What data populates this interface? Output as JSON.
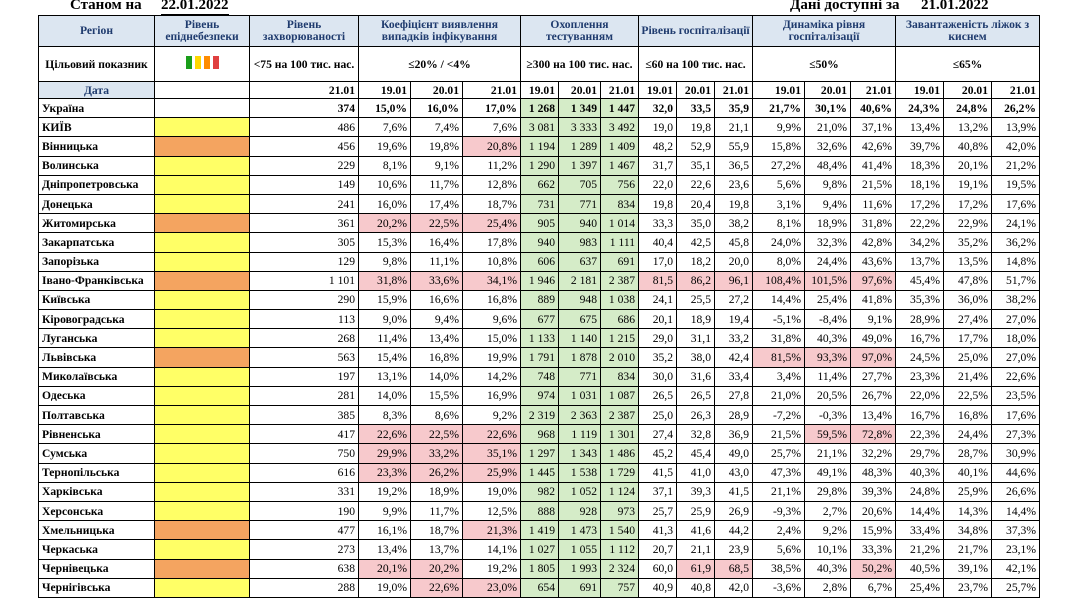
{
  "top": {
    "as_of_label": "Станом на",
    "as_of_date": "22.01.2022",
    "data_label": "Дані доступні за",
    "data_date": "21.01.2022"
  },
  "headers": {
    "region": "Регіон",
    "danger": "Рівень епіднебезпеки",
    "incidence": "Рівень захворюваності",
    "detection": "Коефіцієнт виявлення випадків інфікування",
    "testing": "Охоплення тестуванням",
    "hosp": "Рівень госпіталізації",
    "dyn": "Динаміка рівня госпіталізації",
    "oxygen": "Завантаженість ліжок з киснем"
  },
  "targets": {
    "label": "Цільовий показник",
    "incidence": "<75 на 100 тис. нас.",
    "detection": "≤20% / <4%",
    "testing": "≥300 на 100 тис. нас.",
    "hosp": "≤60 на 100 тис. нас.",
    "dyn": "≤50%",
    "oxygen": "≤65%"
  },
  "danger_colors": [
    "#1a9e1a",
    "#ffd700",
    "#ff8c00",
    "#e04040"
  ],
  "date_row": {
    "label": "Дата",
    "incidence": "21.01",
    "d1": "19.01",
    "d2": "20.01",
    "d3": "21.01"
  },
  "rows": [
    {
      "name": "Україна",
      "danger": "none",
      "inc": "374",
      "det": [
        "15,0%",
        "16,0%",
        "17,0%"
      ],
      "test": [
        "1 268",
        "1 349",
        "1 447"
      ],
      "hosp": [
        "32,0",
        "33,5",
        "35,9"
      ],
      "dyn": [
        "21,7%",
        "30,1%",
        "40,6%"
      ],
      "oxy": [
        "24,3%",
        "24,8%",
        "26,2%"
      ]
    },
    {
      "name": "КИЇВ",
      "danger": "yellow",
      "inc": "486",
      "det": [
        "7,6%",
        "7,4%",
        "7,6%"
      ],
      "test": [
        "3 081",
        "3 333",
        "3 492"
      ],
      "hosp": [
        "19,0",
        "19,8",
        "21,1"
      ],
      "dyn": [
        "9,9%",
        "21,0%",
        "37,1%"
      ],
      "oxy": [
        "13,4%",
        "13,2%",
        "13,9%"
      ]
    },
    {
      "name": "Вінницька",
      "danger": "orange",
      "inc": "456",
      "det": [
        "19,6%",
        "19,8%",
        "20,8%"
      ],
      "test": [
        "1 194",
        "1 289",
        "1 409"
      ],
      "hosp": [
        "48,2",
        "52,9",
        "55,9"
      ],
      "dyn": [
        "15,8%",
        "32,6%",
        "42,6%"
      ],
      "oxy": [
        "39,7%",
        "40,8%",
        "42,0%"
      ]
    },
    {
      "name": "Волинська",
      "danger": "yellow",
      "inc": "229",
      "det": [
        "8,1%",
        "9,1%",
        "11,2%"
      ],
      "test": [
        "1 290",
        "1 397",
        "1 467"
      ],
      "hosp": [
        "31,7",
        "35,1",
        "36,5"
      ],
      "dyn": [
        "27,2%",
        "48,4%",
        "41,4%"
      ],
      "oxy": [
        "18,3%",
        "20,1%",
        "21,2%"
      ]
    },
    {
      "name": "Дніпропетровська",
      "danger": "yellow",
      "inc": "149",
      "det": [
        "10,6%",
        "11,7%",
        "12,8%"
      ],
      "test": [
        "662",
        "705",
        "756"
      ],
      "hosp": [
        "22,0",
        "22,6",
        "23,6"
      ],
      "dyn": [
        "5,6%",
        "9,8%",
        "21,5%"
      ],
      "oxy": [
        "18,1%",
        "19,1%",
        "19,5%"
      ]
    },
    {
      "name": "Донецька",
      "danger": "yellow",
      "inc": "241",
      "det": [
        "16,0%",
        "17,4%",
        "18,7%"
      ],
      "test": [
        "731",
        "771",
        "834"
      ],
      "hosp": [
        "19,8",
        "20,4",
        "19,8"
      ],
      "dyn": [
        "3,1%",
        "9,4%",
        "11,6%"
      ],
      "oxy": [
        "17,2%",
        "17,2%",
        "17,6%"
      ]
    },
    {
      "name": "Житомирська",
      "danger": "orange",
      "inc": "361",
      "det": [
        "20,2%",
        "22,5%",
        "25,4%"
      ],
      "test": [
        "905",
        "940",
        "1 014"
      ],
      "hosp": [
        "33,3",
        "35,0",
        "38,2"
      ],
      "dyn": [
        "8,1%",
        "18,9%",
        "31,8%"
      ],
      "oxy": [
        "22,2%",
        "22,9%",
        "24,1%"
      ]
    },
    {
      "name": "Закарпатська",
      "danger": "yellow",
      "inc": "305",
      "det": [
        "15,3%",
        "16,4%",
        "17,8%"
      ],
      "test": [
        "940",
        "983",
        "1 111"
      ],
      "hosp": [
        "40,4",
        "42,5",
        "45,8"
      ],
      "dyn": [
        "24,0%",
        "32,3%",
        "42,8%"
      ],
      "oxy": [
        "34,2%",
        "35,2%",
        "36,2%"
      ]
    },
    {
      "name": "Запорізька",
      "danger": "yellow",
      "inc": "129",
      "det": [
        "9,8%",
        "11,1%",
        "10,8%"
      ],
      "test": [
        "606",
        "637",
        "691"
      ],
      "hosp": [
        "17,0",
        "18,2",
        "20,0"
      ],
      "dyn": [
        "8,0%",
        "24,4%",
        "43,6%"
      ],
      "oxy": [
        "13,7%",
        "13,5%",
        "14,8%"
      ]
    },
    {
      "name": "Івано-Франківська",
      "danger": "orange",
      "inc": "1 101",
      "det": [
        "31,8%",
        "33,6%",
        "34,1%"
      ],
      "test": [
        "1 946",
        "2 181",
        "2 387"
      ],
      "hosp": [
        "81,5",
        "86,2",
        "96,1"
      ],
      "dyn": [
        "108,4%",
        "101,5%",
        "97,6%"
      ],
      "oxy": [
        "45,4%",
        "47,8%",
        "51,7%"
      ]
    },
    {
      "name": "Київська",
      "danger": "yellow",
      "inc": "290",
      "det": [
        "15,9%",
        "16,6%",
        "16,8%"
      ],
      "test": [
        "889",
        "948",
        "1 038"
      ],
      "hosp": [
        "24,1",
        "25,5",
        "27,2"
      ],
      "dyn": [
        "14,4%",
        "25,4%",
        "41,8%"
      ],
      "oxy": [
        "35,3%",
        "36,0%",
        "38,2%"
      ]
    },
    {
      "name": "Кіровоградська",
      "danger": "yellow",
      "inc": "113",
      "det": [
        "9,0%",
        "9,4%",
        "9,6%"
      ],
      "test": [
        "677",
        "675",
        "686"
      ],
      "hosp": [
        "20,1",
        "18,9",
        "19,4"
      ],
      "dyn": [
        "-5,1%",
        "-8,4%",
        "9,1%"
      ],
      "oxy": [
        "28,9%",
        "27,4%",
        "27,0%"
      ]
    },
    {
      "name": "Луганська",
      "danger": "yellow",
      "inc": "268",
      "det": [
        "11,4%",
        "13,4%",
        "15,0%"
      ],
      "test": [
        "1 133",
        "1 140",
        "1 215"
      ],
      "hosp": [
        "29,0",
        "31,1",
        "33,2"
      ],
      "dyn": [
        "31,8%",
        "40,3%",
        "49,0%"
      ],
      "oxy": [
        "16,7%",
        "17,7%",
        "18,0%"
      ]
    },
    {
      "name": "Львівська",
      "danger": "orange",
      "inc": "563",
      "det": [
        "15,4%",
        "16,8%",
        "19,9%"
      ],
      "test": [
        "1 791",
        "1 878",
        "2 010"
      ],
      "hosp": [
        "35,2",
        "38,0",
        "42,4"
      ],
      "dyn": [
        "81,5%",
        "93,3%",
        "97,0%"
      ],
      "oxy": [
        "24,5%",
        "25,0%",
        "27,0%"
      ]
    },
    {
      "name": "Миколаївська",
      "danger": "yellow",
      "inc": "197",
      "det": [
        "13,1%",
        "14,0%",
        "14,2%"
      ],
      "test": [
        "748",
        "771",
        "834"
      ],
      "hosp": [
        "30,0",
        "31,6",
        "33,4"
      ],
      "dyn": [
        "3,4%",
        "11,4%",
        "27,7%"
      ],
      "oxy": [
        "23,3%",
        "21,4%",
        "22,6%"
      ]
    },
    {
      "name": "Одеська",
      "danger": "yellow",
      "inc": "281",
      "det": [
        "14,0%",
        "15,5%",
        "16,9%"
      ],
      "test": [
        "974",
        "1 031",
        "1 087"
      ],
      "hosp": [
        "26,5",
        "26,5",
        "27,8"
      ],
      "dyn": [
        "21,0%",
        "20,5%",
        "26,7%"
      ],
      "oxy": [
        "22,0%",
        "22,5%",
        "23,5%"
      ]
    },
    {
      "name": "Полтавська",
      "danger": "yellow",
      "inc": "385",
      "det": [
        "8,3%",
        "8,6%",
        "9,2%"
      ],
      "test": [
        "2 319",
        "2 363",
        "2 387"
      ],
      "hosp": [
        "25,0",
        "26,3",
        "28,9"
      ],
      "dyn": [
        "-7,2%",
        "-0,3%",
        "13,4%"
      ],
      "oxy": [
        "16,7%",
        "16,8%",
        "17,6%"
      ]
    },
    {
      "name": "Рівненська",
      "danger": "yellow",
      "inc": "417",
      "det": [
        "22,6%",
        "22,5%",
        "22,6%"
      ],
      "test": [
        "968",
        "1 119",
        "1 301"
      ],
      "hosp": [
        "27,4",
        "32,8",
        "36,9"
      ],
      "dyn": [
        "21,5%",
        "59,5%",
        "72,8%"
      ],
      "oxy": [
        "22,3%",
        "24,4%",
        "27,3%"
      ]
    },
    {
      "name": "Сумська",
      "danger": "yellow",
      "inc": "750",
      "det": [
        "29,9%",
        "33,2%",
        "35,1%"
      ],
      "test": [
        "1 297",
        "1 343",
        "1 486"
      ],
      "hosp": [
        "45,2",
        "45,4",
        "49,0"
      ],
      "dyn": [
        "25,7%",
        "21,1%",
        "32,2%"
      ],
      "oxy": [
        "29,7%",
        "28,7%",
        "30,9%"
      ]
    },
    {
      "name": "Тернопільська",
      "danger": "yellow",
      "inc": "616",
      "det": [
        "23,3%",
        "26,2%",
        "25,9%"
      ],
      "test": [
        "1 445",
        "1 538",
        "1 729"
      ],
      "hosp": [
        "41,5",
        "41,0",
        "43,0"
      ],
      "dyn": [
        "47,3%",
        "49,1%",
        "48,3%"
      ],
      "oxy": [
        "40,3%",
        "40,1%",
        "44,6%"
      ]
    },
    {
      "name": "Харківська",
      "danger": "yellow",
      "inc": "331",
      "det": [
        "19,2%",
        "18,9%",
        "19,0%"
      ],
      "test": [
        "982",
        "1 052",
        "1 124"
      ],
      "hosp": [
        "37,1",
        "39,3",
        "41,5"
      ],
      "dyn": [
        "21,1%",
        "29,8%",
        "39,3%"
      ],
      "oxy": [
        "24,8%",
        "25,9%",
        "26,6%"
      ]
    },
    {
      "name": "Херсонська",
      "danger": "yellow",
      "inc": "190",
      "det": [
        "9,9%",
        "11,7%",
        "12,5%"
      ],
      "test": [
        "888",
        "928",
        "973"
      ],
      "hosp": [
        "25,7",
        "25,9",
        "26,9"
      ],
      "dyn": [
        "-9,3%",
        "2,7%",
        "20,6%"
      ],
      "oxy": [
        "14,4%",
        "14,3%",
        "14,4%"
      ]
    },
    {
      "name": "Хмельницька",
      "danger": "orange",
      "inc": "477",
      "det": [
        "16,1%",
        "18,7%",
        "21,3%"
      ],
      "test": [
        "1 419",
        "1 473",
        "1 540"
      ],
      "hosp": [
        "41,3",
        "41,6",
        "44,2"
      ],
      "dyn": [
        "2,4%",
        "9,2%",
        "15,9%"
      ],
      "oxy": [
        "33,4%",
        "34,8%",
        "37,3%"
      ]
    },
    {
      "name": "Черкаська",
      "danger": "yellow",
      "inc": "273",
      "det": [
        "13,4%",
        "13,7%",
        "14,1%"
      ],
      "test": [
        "1 027",
        "1 055",
        "1 112"
      ],
      "hosp": [
        "20,7",
        "21,1",
        "23,9"
      ],
      "dyn": [
        "5,6%",
        "10,1%",
        "33,3%"
      ],
      "oxy": [
        "21,2%",
        "21,7%",
        "23,1%"
      ]
    },
    {
      "name": "Чернівецька",
      "danger": "orange",
      "inc": "638",
      "det": [
        "20,1%",
        "20,2%",
        "19,2%"
      ],
      "test": [
        "1 805",
        "1 993",
        "2 324"
      ],
      "hosp": [
        "60,0",
        "61,9",
        "68,5"
      ],
      "dyn": [
        "38,5%",
        "40,3%",
        "50,2%"
      ],
      "oxy": [
        "40,5%",
        "39,1%",
        "42,1%"
      ]
    },
    {
      "name": "Чернігівська",
      "danger": "yellow",
      "inc": "288",
      "det": [
        "19,0%",
        "22,6%",
        "23,0%"
      ],
      "test": [
        "654",
        "691",
        "757"
      ],
      "hosp": [
        "40,9",
        "40,8",
        "42,0"
      ],
      "dyn": [
        "-3,6%",
        "2,8%",
        "6,7%"
      ],
      "oxy": [
        "25,4%",
        "23,7%",
        "25,7%"
      ]
    }
  ]
}
